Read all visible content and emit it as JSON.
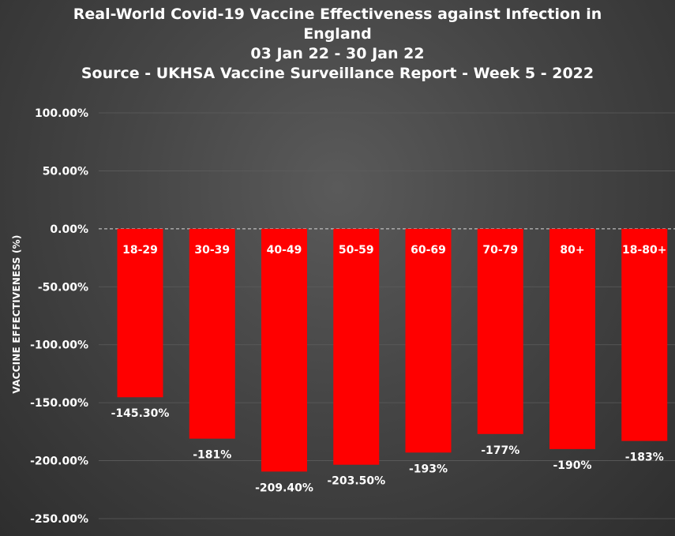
{
  "chart_data": {
    "type": "bar",
    "title_lines": [
      "Real-World Covid-19 Vaccine Effectiveness against Infection in",
      "England",
      "03 Jan 22 - 30 Jan 22",
      "Source - UKHSA Vaccine Surveillance Report - Week 5 - 2022"
    ],
    "ylabel": "VACCINE EFFECTIVENESS (%)",
    "xlabel": "",
    "ylim": [
      -250,
      100
    ],
    "yticks": [
      100,
      50,
      0,
      -50,
      -100,
      -150,
      -200,
      -250
    ],
    "ytick_labels": [
      "100.00%",
      "50.00%",
      "0.00%",
      "-50.00%",
      "-100.00%",
      "-150.00%",
      "-200.00%",
      "-250.00%"
    ],
    "categories": [
      "18-29",
      "30-39",
      "40-49",
      "50-59",
      "60-69",
      "70-79",
      "80+",
      "18-80+"
    ],
    "values": [
      -145.3,
      -181,
      -209.4,
      -203.5,
      -193,
      -177,
      -190,
      -183
    ],
    "data_labels": [
      "-145.30%",
      "-181%",
      "-209.40%",
      "-203.50%",
      "-193%",
      "-177%",
      "-190%",
      "-183%"
    ],
    "grid": true,
    "zero_line": "dashed",
    "legend": "none",
    "colors": {
      "bar": "#ff0000",
      "text": "#ffffff",
      "grid": "#5c5c5c"
    }
  }
}
